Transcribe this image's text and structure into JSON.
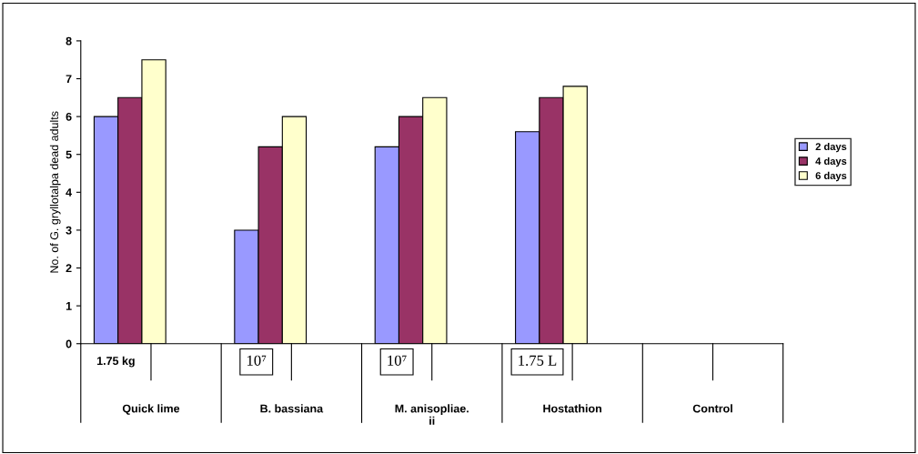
{
  "chart_data": {
    "type": "bar",
    "ylabel": "No. of G. gryllotalpa dead adults",
    "categories": [
      "Quick lime",
      "B. bassiana",
      "M. anisopliae.\nii",
      "Hostathion",
      "Control"
    ],
    "series": [
      {
        "name": "2 days",
        "color": "#9999ff",
        "values": [
          6,
          3,
          5.2,
          5.6,
          null
        ]
      },
      {
        "name": "4 days",
        "color": "#993366",
        "values": [
          6.5,
          5.2,
          6,
          6.5,
          null
        ]
      },
      {
        "name": "6 days",
        "color": "#ffffcc",
        "values": [
          7.5,
          6,
          6.5,
          6.8,
          null
        ]
      }
    ],
    "annotations": [
      "1.75 kg",
      "10⁷",
      "10⁷",
      "1.75 L"
    ],
    "ylim": [
      0,
      8
    ],
    "yticks": [
      0,
      1,
      2,
      3,
      4,
      5,
      6,
      7,
      8
    ],
    "grid": false,
    "legend": "right"
  }
}
